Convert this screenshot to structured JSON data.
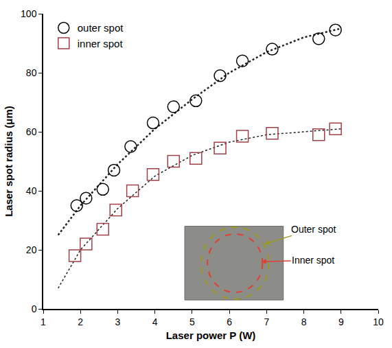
{
  "chart_data": {
    "type": "scatter",
    "x_label": "Laser power P (W)",
    "y_label": "Laser spot radius (μm)",
    "xlim": [
      1,
      10
    ],
    "xticks": [
      1,
      2,
      3,
      4,
      5,
      6,
      7,
      8,
      9,
      10
    ],
    "ylim": [
      0,
      100
    ],
    "yticks": [
      0,
      20,
      40,
      60,
      80,
      100
    ],
    "grid": false,
    "legend": "upper left",
    "series": [
      {
        "name": "outer spot",
        "color": "#000000",
        "marker": "circle-open",
        "line_style": "dotted",
        "x": [
          1.9,
          2.15,
          2.6,
          2.9,
          3.35,
          3.95,
          4.5,
          5.1,
          5.75,
          6.35,
          7.15,
          8.4,
          8.85
        ],
        "values": [
          35,
          37.5,
          40.5,
          47,
          55,
          63,
          68.5,
          70.5,
          79,
          84,
          88,
          91.5,
          94.5
        ],
        "trend": {
          "x": [
            1.4,
            2,
            3,
            4,
            5,
            6,
            7,
            8,
            9
          ],
          "values": [
            25,
            35,
            49,
            61,
            71,
            80,
            87,
            92,
            95
          ]
        }
      },
      {
        "name": "inner spot",
        "color": "#a0404a",
        "marker": "square-open",
        "line_style": "dotted",
        "x": [
          1.85,
          2.15,
          2.6,
          2.95,
          3.4,
          3.95,
          4.5,
          5.1,
          5.75,
          6.35,
          7.15,
          8.4,
          8.85
        ],
        "values": [
          18,
          22,
          27,
          33.5,
          40,
          45.5,
          50,
          51,
          54.5,
          58.5,
          59.5,
          59,
          61
        ],
        "trend": {
          "x": [
            1.4,
            2,
            3,
            4,
            5,
            6,
            7,
            8,
            9
          ],
          "values": [
            7,
            20,
            34,
            45,
            52,
            56.5,
            59,
            60,
            61
          ]
        }
      }
    ],
    "annotations": [
      {
        "text": "Outer spot",
        "color": "#9a9a20"
      },
      {
        "text": "Inner spot",
        "color": "#e04030"
      }
    ]
  }
}
